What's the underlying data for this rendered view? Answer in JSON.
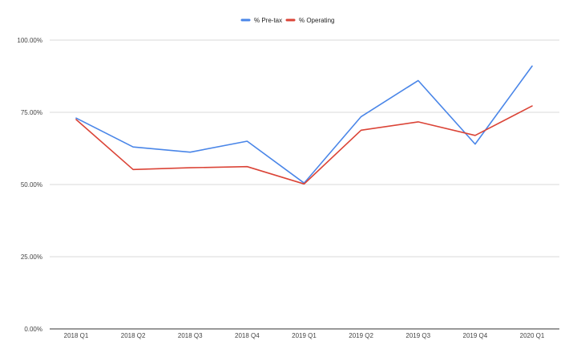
{
  "chart_data": {
    "type": "line",
    "categories": [
      "2018 Q1",
      "2018 Q2",
      "2018 Q3",
      "2018 Q4",
      "2019 Q1",
      "2019 Q2",
      "2019 Q3",
      "2019 Q4",
      "2020 Q1"
    ],
    "series": [
      {
        "name": "% Pre-tax",
        "color": "#4a86e8",
        "values": [
          73.0,
          63.0,
          61.2,
          65.0,
          50.5,
          73.5,
          86.0,
          64.0,
          91.0
        ]
      },
      {
        "name": "% Operating",
        "color": "#db4437",
        "values": [
          72.5,
          55.2,
          55.8,
          56.2,
          50.2,
          68.8,
          71.7,
          67.0,
          77.2
        ]
      }
    ],
    "yaxis": {
      "min": 0,
      "max": 100,
      "ticks": [
        0,
        25,
        50,
        75,
        100
      ],
      "tick_labels": [
        "0.00%",
        "25.00%",
        "50.00%",
        "75.00%",
        "100.00%"
      ]
    },
    "grid": true,
    "legend_position": "top-center",
    "title": "",
    "xlabel": "",
    "ylabel": ""
  }
}
